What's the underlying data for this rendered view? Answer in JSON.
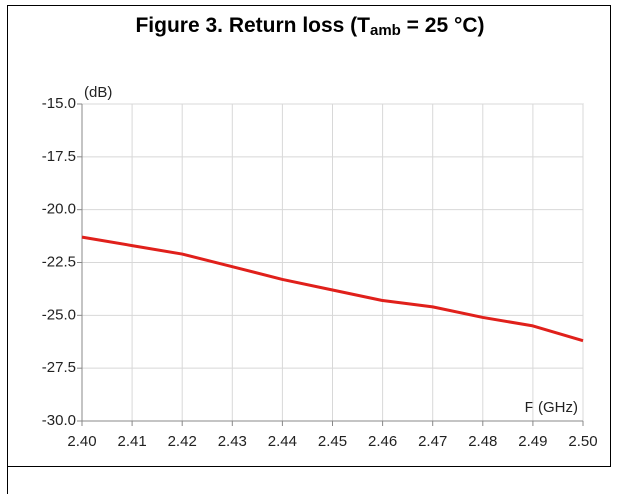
{
  "chart_data": {
    "type": "line",
    "title": [
      "Figure 3. Return loss (T",
      "amb",
      " = 25 °C)"
    ],
    "y_label": "(dB)",
    "x_label": "F (GHz)",
    "x": [
      2.4,
      2.41,
      2.42,
      2.43,
      2.44,
      2.45,
      2.46,
      2.47,
      2.48,
      2.49,
      2.5
    ],
    "series": [
      {
        "name": "Return loss",
        "color": "#e0201b",
        "values": [
          -21.3,
          -21.7,
          -22.1,
          -22.7,
          -23.3,
          -23.8,
          -24.3,
          -24.6,
          -25.1,
          -25.5,
          -26.2
        ]
      }
    ],
    "xlim": [
      2.4,
      2.5
    ],
    "xticks": [
      {
        "value": 2.4,
        "label": "2.40"
      },
      2.41,
      2.42,
      2.43,
      2.44,
      2.45,
      2.46,
      2.47,
      2.48,
      2.49,
      {
        "value": 2.5,
        "label": "2.50"
      }
    ],
    "ylim": [
      -30,
      -15
    ],
    "yticks": [
      {
        "value": -30,
        "label": "-30.0"
      },
      {
        "value": -27.5,
        "label": "-27.5"
      },
      {
        "value": -25,
        "label": "-25.0"
      },
      {
        "value": -22.5,
        "label": "-22.5"
      },
      {
        "value": -20,
        "label": "-20.0"
      },
      {
        "value": -17.5,
        "label": "-17.5"
      },
      {
        "value": -15,
        "label": "-15.0"
      }
    ],
    "grid": true
  }
}
